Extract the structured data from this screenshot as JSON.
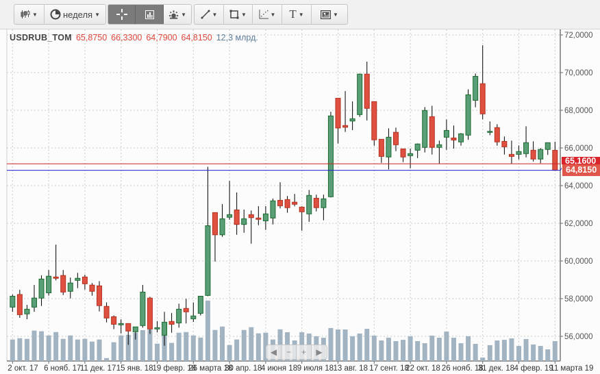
{
  "toolbar": {
    "chart_type_icon": "candlestick-icon",
    "period_label": "неделя",
    "period_icon": "clock-icon",
    "crosshair_icon": "crosshair-icon",
    "volume_icon": "bar-chart-icon",
    "indicators_icon": "indicators-icon",
    "draw_line_icon": "line-tool-icon",
    "rectangle_icon": "rectangle-tool-icon",
    "fib_icon": "fibonacci-tool-icon",
    "text_label": "T",
    "image_icon": "image-icon"
  },
  "legend": {
    "symbol": "USDRUB_TOM",
    "open": "65,8750",
    "high": "66,3300",
    "low": "64,7900",
    "close": "64,8150",
    "volume": "12,3 млрд."
  },
  "price_labels": {
    "red_line": "65,1600",
    "last_price": "64,8150"
  },
  "navigator": {
    "left": "◀",
    "minus": "−",
    "plus": "+",
    "right": "▶"
  },
  "colors": {
    "up_fill": "#5a9e78",
    "up_border": "#1b6b2f",
    "down_fill": "#e05040",
    "down_border": "#b3311f",
    "volume": "#a2b3c2",
    "red_line": "#cc2020",
    "blue_line": "#2020cc"
  },
  "chart_data": {
    "type": "candlestick",
    "interval": "week",
    "ylim": [
      56,
      72
    ],
    "y_ticks": [
      "72,0000",
      "70,0000",
      "68,0000",
      "66,0000",
      "64,0000",
      "62,0000",
      "60,0000",
      "58,0000",
      "56,0000"
    ],
    "y_tick_values": [
      72,
      70,
      68,
      66,
      64,
      62,
      60,
      58,
      56
    ],
    "x_ticks": [
      "2 окт. 17",
      "6 нояб. 17",
      "11 дек. 17",
      "15 янв. 18",
      "19 февр. 18",
      "26 марта 18",
      "30 апр. 18",
      "4 июня 18",
      "9 июля 18",
      "13 авг. 18",
      "17 сент. 18",
      "22 окт. 18",
      "26 нояб. 18",
      "31 дек. 18",
      "4 февр. 19",
      "11 марта 19"
    ],
    "horizontal_lines": [
      65.16,
      64.815
    ],
    "volume_unit": "млрд.",
    "grid": true,
    "candles": [
      [
        "2017-10-02",
        57.55,
        58.22,
        57.3,
        58.13,
        13.3
      ],
      [
        "2017-10-09",
        58.22,
        58.47,
        56.98,
        57.15,
        14.1
      ],
      [
        "2017-10-16",
        57.19,
        57.67,
        56.91,
        57.44,
        13.7
      ],
      [
        "2017-10-23",
        57.55,
        58.73,
        57.3,
        58.03,
        18.8
      ],
      [
        "2017-10-30",
        58.03,
        59.24,
        57.61,
        59.04,
        18.4
      ],
      [
        "2017-11-06",
        58.31,
        59.52,
        58.16,
        59.19,
        15.8
      ],
      [
        "2017-11-13",
        59.15,
        60.87,
        58.97,
        59.08,
        17.9
      ],
      [
        "2017-11-20",
        59.23,
        59.52,
        58.19,
        58.35,
        13.7
      ],
      [
        "2017-11-27",
        58.39,
        59.12,
        58.01,
        58.83,
        15.8
      ],
      [
        "2017-12-04",
        58.97,
        59.37,
        58.56,
        59.08,
        13.3
      ],
      [
        "2017-12-11",
        59.15,
        59.27,
        58.48,
        58.79,
        13.7
      ],
      [
        "2017-12-18",
        58.72,
        58.83,
        58.16,
        58.39,
        12.0
      ],
      [
        "2017-12-25",
        58.68,
        58.93,
        57.32,
        57.63,
        13.3
      ],
      [
        "2018-01-01",
        57.59,
        57.8,
        56.74,
        56.97,
        1.8
      ],
      [
        "2018-01-08",
        57.04,
        57.11,
        56.38,
        56.64,
        11.6
      ],
      [
        "2018-01-15",
        56.61,
        56.9,
        56.15,
        56.68,
        15.8
      ],
      [
        "2018-01-22",
        56.68,
        56.68,
        55.55,
        56.28,
        16.2
      ],
      [
        "2018-01-29",
        56.24,
        56.5,
        55.83,
        56.5,
        17.5
      ],
      [
        "2018-02-05",
        56.57,
        58.73,
        56.46,
        58.35,
        19.1
      ],
      [
        "2018-02-12",
        58.03,
        58.1,
        56.13,
        56.39,
        19.4
      ],
      [
        "2018-02-19",
        56.39,
        56.8,
        56.21,
        56.46,
        10.7
      ],
      [
        "2018-02-26",
        56.06,
        57.3,
        55.5,
        56.75,
        15.7
      ],
      [
        "2018-03-05",
        56.79,
        57.24,
        56.19,
        56.64,
        11.2
      ],
      [
        "2018-03-12",
        56.71,
        57.73,
        56.46,
        57.44,
        17.5
      ],
      [
        "2018-03-19",
        57.48,
        57.99,
        56.68,
        57.3,
        17.9
      ],
      [
        "2018-03-26",
        56.93,
        57.8,
        56.76,
        57.08,
        15.8
      ],
      [
        "2018-04-02",
        57.22,
        58.13,
        57.11,
        58.13,
        14.5
      ],
      [
        "2018-04-09",
        58.17,
        65.0,
        58.13,
        61.87,
        37.4
      ],
      [
        "2018-04-16",
        62.57,
        62.57,
        59.97,
        61.39,
        19.2
      ],
      [
        "2018-04-23",
        61.39,
        63.02,
        61.28,
        62.24,
        21.3
      ],
      [
        "2018-04-30",
        62.32,
        64.25,
        62.19,
        62.46,
        9.9
      ],
      [
        "2018-05-07",
        62.71,
        63.64,
        61.39,
        61.94,
        13.3
      ],
      [
        "2018-05-14",
        61.94,
        62.73,
        61.5,
        62.24,
        19.2
      ],
      [
        "2018-05-21",
        62.46,
        62.68,
        60.92,
        62.3,
        20.9
      ],
      [
        "2018-05-28",
        62.28,
        62.91,
        61.9,
        62.21,
        17.1
      ],
      [
        "2018-06-04",
        62.13,
        62.91,
        61.65,
        62.5,
        17.5
      ],
      [
        "2018-06-11",
        62.28,
        63.31,
        61.94,
        63.19,
        13.3
      ],
      [
        "2018-06-18",
        63.22,
        64.18,
        62.79,
        62.93,
        19.6
      ],
      [
        "2018-06-25",
        63.26,
        63.45,
        62.56,
        62.83,
        17.8
      ],
      [
        "2018-07-02",
        63.12,
        63.56,
        62.9,
        63.01,
        12.7
      ],
      [
        "2018-07-09",
        62.86,
        62.9,
        61.61,
        62.61,
        17.8
      ],
      [
        "2018-07-16",
        62.5,
        63.77,
        62.08,
        63.48,
        17.0
      ],
      [
        "2018-07-23",
        63.33,
        63.52,
        62.63,
        62.83,
        15.3
      ],
      [
        "2018-07-30",
        62.83,
        63.52,
        62.16,
        63.3,
        14.4
      ],
      [
        "2018-08-06",
        63.41,
        67.92,
        63.37,
        67.7,
        20.4
      ],
      [
        "2018-08-13",
        68.64,
        68.64,
        66.23,
        67.06,
        19.5
      ],
      [
        "2018-08-20",
        67.19,
        69.02,
        66.85,
        67.1,
        19.5
      ],
      [
        "2018-08-27",
        67.43,
        68.47,
        66.95,
        67.55,
        15.3
      ],
      [
        "2018-09-03",
        67.77,
        69.95,
        67.65,
        69.92,
        17.0
      ],
      [
        "2018-09-10",
        69.92,
        70.58,
        67.46,
        68.1,
        19.9
      ],
      [
        "2018-09-17",
        68.46,
        68.46,
        66.12,
        66.43,
        15.7
      ],
      [
        "2018-09-24",
        66.46,
        66.46,
        65.21,
        65.55,
        12.7
      ],
      [
        "2018-10-01",
        65.52,
        67.04,
        64.86,
        66.57,
        14.4
      ],
      [
        "2018-10-08",
        66.83,
        67.08,
        65.83,
        66.17,
        12.3
      ],
      [
        "2018-10-15",
        65.95,
        65.95,
        65.25,
        65.52,
        13.1
      ],
      [
        "2018-10-22",
        65.59,
        65.97,
        64.92,
        65.7,
        15.3
      ],
      [
        "2018-10-29",
        65.88,
        66.24,
        65.46,
        66.21,
        12.3
      ],
      [
        "2018-11-05",
        66.03,
        68.17,
        65.76,
        67.99,
        11.0
      ],
      [
        "2018-11-12",
        67.66,
        68.24,
        65.65,
        66.03,
        15.7
      ],
      [
        "2018-11-19",
        66.03,
        66.39,
        65.17,
        66.17,
        14.4
      ],
      [
        "2018-11-26",
        66.57,
        67.51,
        65.9,
        66.93,
        18.2
      ],
      [
        "2018-12-03",
        66.53,
        67.19,
        65.97,
        66.42,
        14.4
      ],
      [
        "2018-12-10",
        66.32,
        66.79,
        66.12,
        66.75,
        11.0
      ],
      [
        "2018-12-17",
        66.68,
        69.11,
        66.43,
        68.82,
        15.3
      ],
      [
        "2018-12-24",
        68.53,
        69.95,
        68.16,
        69.8,
        10.6
      ],
      [
        "2018-12-31",
        69.41,
        71.45,
        67.52,
        67.81,
        2.1
      ],
      [
        "2019-01-07",
        66.86,
        67.41,
        66.68,
        66.88,
        9.8
      ],
      [
        "2019-01-14",
        67.08,
        67.26,
        66.12,
        66.32,
        12.7
      ],
      [
        "2019-01-21",
        66.35,
        66.61,
        65.65,
        66.06,
        13.1
      ],
      [
        "2019-01-28",
        65.66,
        66.39,
        65.16,
        65.55,
        14.0
      ],
      [
        "2019-02-04",
        65.66,
        66.13,
        65.39,
        65.81,
        9.3
      ],
      [
        "2019-02-11",
        65.7,
        67.15,
        65.5,
        66.28,
        13.6
      ],
      [
        "2019-02-18",
        65.88,
        66.35,
        65.28,
        65.41,
        10.2
      ],
      [
        "2019-02-25",
        65.41,
        65.99,
        65.19,
        65.92,
        9.3
      ],
      [
        "2019-03-04",
        65.92,
        66.28,
        65.63,
        66.28,
        7.2
      ],
      [
        "2019-03-11",
        65.875,
        66.33,
        64.79,
        64.815,
        12.3
      ]
    ]
  }
}
